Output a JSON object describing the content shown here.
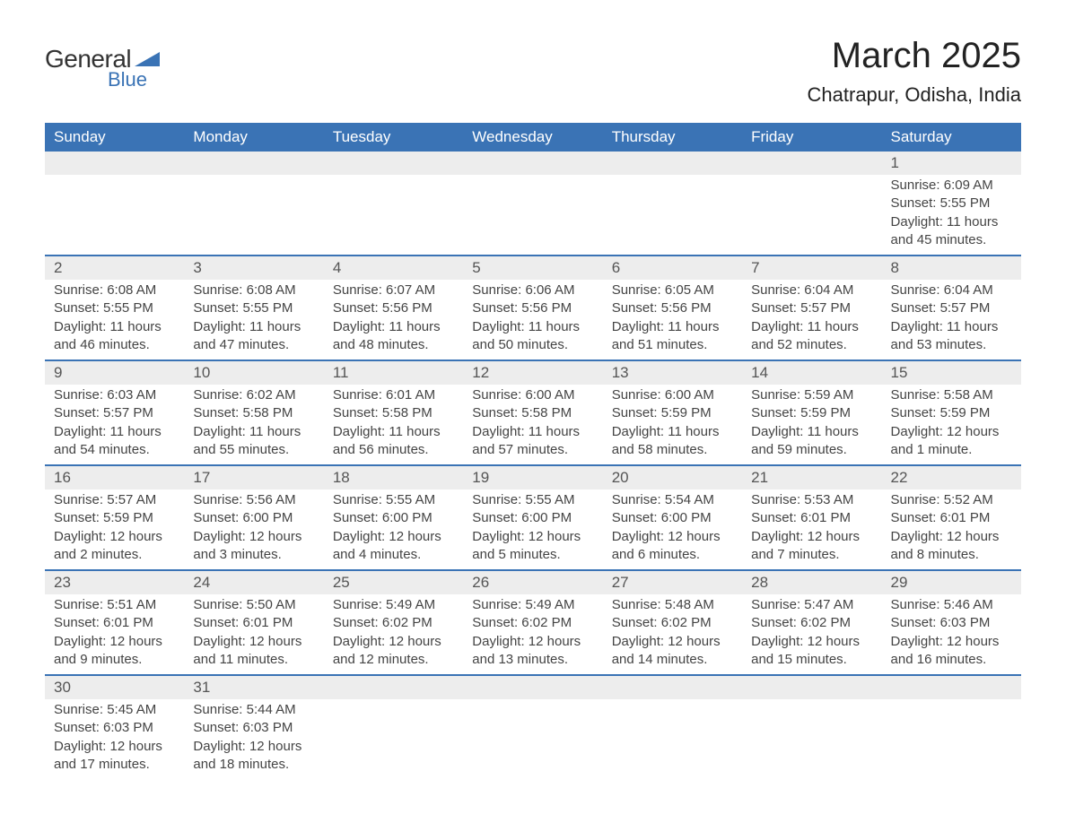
{
  "logo": {
    "general": "General",
    "blue": "Blue"
  },
  "title": "March 2025",
  "location": "Chatrapur, Odisha, India",
  "colors": {
    "header_bg": "#3a73b5",
    "header_text": "#ffffff",
    "daynum_bg": "#ededed",
    "daynum_text": "#555555",
    "body_text": "#444444",
    "row_border": "#3a73b5",
    "page_bg": "#ffffff"
  },
  "fonts": {
    "title_size": 40,
    "location_size": 22,
    "header_size": 17,
    "daynum_size": 17,
    "cell_size": 15
  },
  "day_headers": [
    "Sunday",
    "Monday",
    "Tuesday",
    "Wednesday",
    "Thursday",
    "Friday",
    "Saturday"
  ],
  "weeks": [
    [
      null,
      null,
      null,
      null,
      null,
      null,
      {
        "n": "1",
        "sr": "6:09 AM",
        "ss": "5:55 PM",
        "dl": "11 hours and 45 minutes."
      }
    ],
    [
      {
        "n": "2",
        "sr": "6:08 AM",
        "ss": "5:55 PM",
        "dl": "11 hours and 46 minutes."
      },
      {
        "n": "3",
        "sr": "6:08 AM",
        "ss": "5:55 PM",
        "dl": "11 hours and 47 minutes."
      },
      {
        "n": "4",
        "sr": "6:07 AM",
        "ss": "5:56 PM",
        "dl": "11 hours and 48 minutes."
      },
      {
        "n": "5",
        "sr": "6:06 AM",
        "ss": "5:56 PM",
        "dl": "11 hours and 50 minutes."
      },
      {
        "n": "6",
        "sr": "6:05 AM",
        "ss": "5:56 PM",
        "dl": "11 hours and 51 minutes."
      },
      {
        "n": "7",
        "sr": "6:04 AM",
        "ss": "5:57 PM",
        "dl": "11 hours and 52 minutes."
      },
      {
        "n": "8",
        "sr": "6:04 AM",
        "ss": "5:57 PM",
        "dl": "11 hours and 53 minutes."
      }
    ],
    [
      {
        "n": "9",
        "sr": "6:03 AM",
        "ss": "5:57 PM",
        "dl": "11 hours and 54 minutes."
      },
      {
        "n": "10",
        "sr": "6:02 AM",
        "ss": "5:58 PM",
        "dl": "11 hours and 55 minutes."
      },
      {
        "n": "11",
        "sr": "6:01 AM",
        "ss": "5:58 PM",
        "dl": "11 hours and 56 minutes."
      },
      {
        "n": "12",
        "sr": "6:00 AM",
        "ss": "5:58 PM",
        "dl": "11 hours and 57 minutes."
      },
      {
        "n": "13",
        "sr": "6:00 AM",
        "ss": "5:59 PM",
        "dl": "11 hours and 58 minutes."
      },
      {
        "n": "14",
        "sr": "5:59 AM",
        "ss": "5:59 PM",
        "dl": "11 hours and 59 minutes."
      },
      {
        "n": "15",
        "sr": "5:58 AM",
        "ss": "5:59 PM",
        "dl": "12 hours and 1 minute."
      }
    ],
    [
      {
        "n": "16",
        "sr": "5:57 AM",
        "ss": "5:59 PM",
        "dl": "12 hours and 2 minutes."
      },
      {
        "n": "17",
        "sr": "5:56 AM",
        "ss": "6:00 PM",
        "dl": "12 hours and 3 minutes."
      },
      {
        "n": "18",
        "sr": "5:55 AM",
        "ss": "6:00 PM",
        "dl": "12 hours and 4 minutes."
      },
      {
        "n": "19",
        "sr": "5:55 AM",
        "ss": "6:00 PM",
        "dl": "12 hours and 5 minutes."
      },
      {
        "n": "20",
        "sr": "5:54 AM",
        "ss": "6:00 PM",
        "dl": "12 hours and 6 minutes."
      },
      {
        "n": "21",
        "sr": "5:53 AM",
        "ss": "6:01 PM",
        "dl": "12 hours and 7 minutes."
      },
      {
        "n": "22",
        "sr": "5:52 AM",
        "ss": "6:01 PM",
        "dl": "12 hours and 8 minutes."
      }
    ],
    [
      {
        "n": "23",
        "sr": "5:51 AM",
        "ss": "6:01 PM",
        "dl": "12 hours and 9 minutes."
      },
      {
        "n": "24",
        "sr": "5:50 AM",
        "ss": "6:01 PM",
        "dl": "12 hours and 11 minutes."
      },
      {
        "n": "25",
        "sr": "5:49 AM",
        "ss": "6:02 PM",
        "dl": "12 hours and 12 minutes."
      },
      {
        "n": "26",
        "sr": "5:49 AM",
        "ss": "6:02 PM",
        "dl": "12 hours and 13 minutes."
      },
      {
        "n": "27",
        "sr": "5:48 AM",
        "ss": "6:02 PM",
        "dl": "12 hours and 14 minutes."
      },
      {
        "n": "28",
        "sr": "5:47 AM",
        "ss": "6:02 PM",
        "dl": "12 hours and 15 minutes."
      },
      {
        "n": "29",
        "sr": "5:46 AM",
        "ss": "6:03 PM",
        "dl": "12 hours and 16 minutes."
      }
    ],
    [
      {
        "n": "30",
        "sr": "5:45 AM",
        "ss": "6:03 PM",
        "dl": "12 hours and 17 minutes."
      },
      {
        "n": "31",
        "sr": "5:44 AM",
        "ss": "6:03 PM",
        "dl": "12 hours and 18 minutes."
      },
      null,
      null,
      null,
      null,
      null
    ]
  ],
  "labels": {
    "sunrise": "Sunrise:",
    "sunset": "Sunset:",
    "daylight": "Daylight:"
  }
}
